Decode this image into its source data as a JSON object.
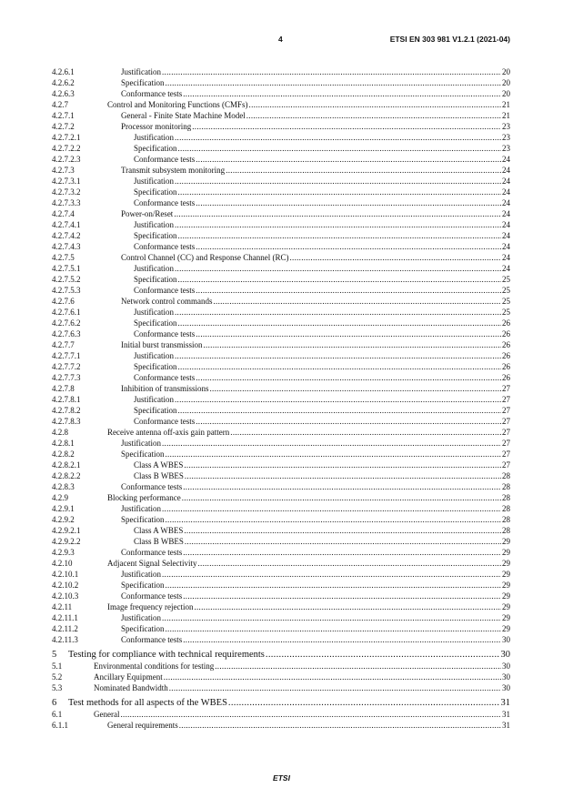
{
  "header": {
    "page_number": "4",
    "document_id": "ETSI EN 303 981 V1.2.1 (2021-04)"
  },
  "footer": {
    "text": "ETSI"
  },
  "toc": [
    {
      "num": "4.2.6.1",
      "title": "Justification",
      "page": "20",
      "level": 4
    },
    {
      "num": "4.2.6.2",
      "title": "Specification",
      "page": "20",
      "level": 4
    },
    {
      "num": "4.2.6.3",
      "title": "Conformance tests",
      "page": "20",
      "level": 4
    },
    {
      "num": "4.2.7",
      "title": "Control and Monitoring Functions (CMFs)",
      "page": "21",
      "level": 3
    },
    {
      "num": "4.2.7.1",
      "title": "General - Finite State Machine Model",
      "page": "21",
      "level": 4
    },
    {
      "num": "4.2.7.2",
      "title": "Processor monitoring",
      "page": "23",
      "level": 4
    },
    {
      "num": "4.2.7.2.1",
      "title": "Justification",
      "page": "23",
      "level": 5
    },
    {
      "num": "4.2.7.2.2",
      "title": "Specification",
      "page": "23",
      "level": 5
    },
    {
      "num": "4.2.7.2.3",
      "title": "Conformance tests",
      "page": "24",
      "level": 5
    },
    {
      "num": "4.2.7.3",
      "title": "Transmit subsystem monitoring",
      "page": "24",
      "level": 4
    },
    {
      "num": "4.2.7.3.1",
      "title": "Justification",
      "page": "24",
      "level": 5
    },
    {
      "num": "4.2.7.3.2",
      "title": "Specification",
      "page": "24",
      "level": 5
    },
    {
      "num": "4.2.7.3.3",
      "title": "Conformance tests",
      "page": "24",
      "level": 5
    },
    {
      "num": "4.2.7.4",
      "title": "Power-on/Reset",
      "page": "24",
      "level": 4
    },
    {
      "num": "4.2.7.4.1",
      "title": "Justification",
      "page": "24",
      "level": 5
    },
    {
      "num": "4.2.7.4.2",
      "title": "Specification",
      "page": "24",
      "level": 5
    },
    {
      "num": "4.2.7.4.3",
      "title": "Conformance tests",
      "page": "24",
      "level": 5
    },
    {
      "num": "4.2.7.5",
      "title": "Control Channel (CC) and Response Channel (RC)",
      "page": "24",
      "level": 4
    },
    {
      "num": "4.2.7.5.1",
      "title": "Justification",
      "page": "24",
      "level": 5
    },
    {
      "num": "4.2.7.5.2",
      "title": "Specification",
      "page": "25",
      "level": 5
    },
    {
      "num": "4.2.7.5.3",
      "title": "Conformance tests",
      "page": "25",
      "level": 5
    },
    {
      "num": "4.2.7.6",
      "title": "Network control commands",
      "page": "25",
      "level": 4
    },
    {
      "num": "4.2.7.6.1",
      "title": "Justification",
      "page": "25",
      "level": 5
    },
    {
      "num": "4.2.7.6.2",
      "title": "Specification",
      "page": "26",
      "level": 5
    },
    {
      "num": "4.2.7.6.3",
      "title": "Conformance tests",
      "page": "26",
      "level": 5
    },
    {
      "num": "4.2.7.7",
      "title": "Initial burst transmission",
      "page": "26",
      "level": 4
    },
    {
      "num": "4.2.7.7.1",
      "title": "Justification",
      "page": "26",
      "level": 5
    },
    {
      "num": "4.2.7.7.2",
      "title": "Specification",
      "page": "26",
      "level": 5
    },
    {
      "num": "4.2.7.7.3",
      "title": "Conformance tests",
      "page": "26",
      "level": 5
    },
    {
      "num": "4.2.7.8",
      "title": "Inhibition of transmissions",
      "page": "27",
      "level": 4
    },
    {
      "num": "4.2.7.8.1",
      "title": "Justification",
      "page": "27",
      "level": 5
    },
    {
      "num": "4.2.7.8.2",
      "title": "Specification",
      "page": "27",
      "level": 5
    },
    {
      "num": "4.2.7.8.3",
      "title": "Conformance tests",
      "page": "27",
      "level": 5
    },
    {
      "num": "4.2.8",
      "title": "Receive antenna off-axis gain pattern",
      "page": "27",
      "level": 3
    },
    {
      "num": "4.2.8.1",
      "title": "Justification",
      "page": "27",
      "level": 4
    },
    {
      "num": "4.2.8.2",
      "title": "Specification",
      "page": "27",
      "level": 4
    },
    {
      "num": "4.2.8.2.1",
      "title": "Class A WBES",
      "page": "27",
      "level": 5
    },
    {
      "num": "4.2.8.2.2",
      "title": "Class B WBES",
      "page": "28",
      "level": 5
    },
    {
      "num": "4.2.8.3",
      "title": "Conformance tests",
      "page": "28",
      "level": 4
    },
    {
      "num": "4.2.9",
      "title": "Blocking performance",
      "page": "28",
      "level": 3
    },
    {
      "num": "4.2.9.1",
      "title": "Justification",
      "page": "28",
      "level": 4
    },
    {
      "num": "4.2.9.2",
      "title": "Specification",
      "page": "28",
      "level": 4
    },
    {
      "num": "4.2.9.2.1",
      "title": "Class A WBES",
      "page": "28",
      "level": 5
    },
    {
      "num": "4.2.9.2.2",
      "title": "Class B WBES",
      "page": "29",
      "level": 5
    },
    {
      "num": "4.2.9.3",
      "title": "Conformance tests",
      "page": "29",
      "level": 4
    },
    {
      "num": "4.2.10",
      "title": "Adjacent Signal Selectivity",
      "page": "29",
      "level": 3
    },
    {
      "num": "4.2.10.1",
      "title": "Justification",
      "page": "29",
      "level": 4
    },
    {
      "num": "4.2.10.2",
      "title": "Specification",
      "page": "29",
      "level": 4
    },
    {
      "num": "4.2.10.3",
      "title": "Conformance tests",
      "page": "29",
      "level": 4
    },
    {
      "num": "4.2.11",
      "title": "Image frequency rejection",
      "page": "29",
      "level": 3
    },
    {
      "num": "4.2.11.1",
      "title": "Justification",
      "page": "29",
      "level": 4
    },
    {
      "num": "4.2.11.2",
      "title": "Specification",
      "page": "29",
      "level": 4
    },
    {
      "num": "4.2.11.3",
      "title": "Conformance tests",
      "page": "30",
      "level": 4
    },
    {
      "num": "5",
      "title": "Testing for compliance with technical requirements",
      "page": "30",
      "level": 1
    },
    {
      "num": "5.1",
      "title": "Environmental conditions for testing",
      "page": "30",
      "level": 2
    },
    {
      "num": "5.2",
      "title": "Ancillary Equipment",
      "page": "30",
      "level": 2
    },
    {
      "num": "5.3",
      "title": "Nominated Bandwidth",
      "page": "30",
      "level": 2
    },
    {
      "num": "6",
      "title": "Test methods for all aspects of the WBES",
      "page": "31",
      "level": 1
    },
    {
      "num": "6.1",
      "title": "General",
      "page": "31",
      "level": 2
    },
    {
      "num": "6.1.1",
      "title": "General requirements",
      "page": "31",
      "level": 3
    }
  ]
}
